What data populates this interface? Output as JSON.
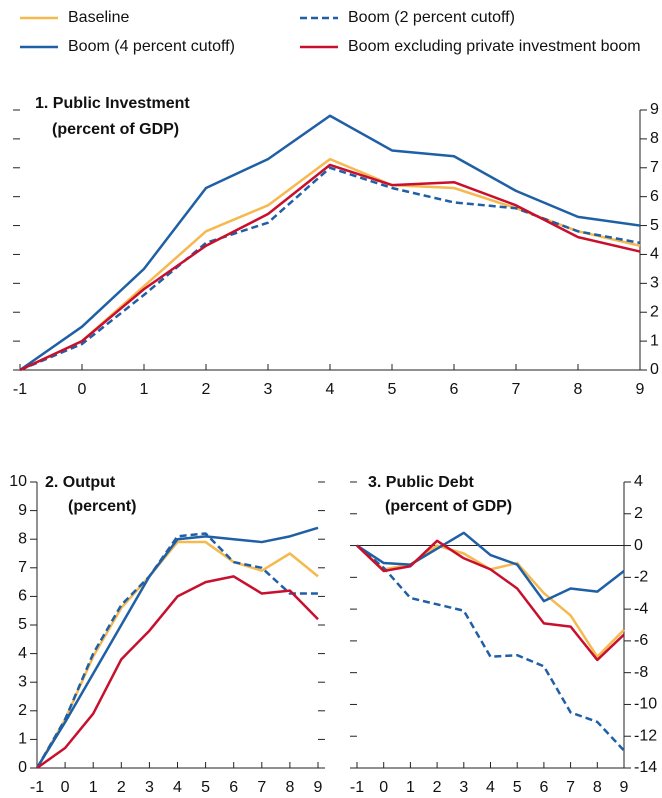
{
  "chart_data": [
    {
      "type": "line",
      "title": "1. Public Investment",
      "subtitle": "(percent of GDP)",
      "x": [
        -1,
        0,
        1,
        2,
        3,
        4,
        5,
        6,
        7,
        8,
        9
      ],
      "xlim": [
        -1,
        9
      ],
      "xticks": [
        -1,
        0,
        1,
        2,
        3,
        4,
        5,
        6,
        7,
        8,
        9
      ],
      "ylim": [
        0,
        9
      ],
      "yticks": [
        0,
        1,
        2,
        3,
        4,
        5,
        6,
        7,
        8,
        9
      ],
      "y_axis_side": "right",
      "series": [
        {
          "name": "Baseline",
          "color": "#f5b94f",
          "dashed": false,
          "values": [
            0,
            1.0,
            2.9,
            4.8,
            5.7,
            7.3,
            6.4,
            6.3,
            5.6,
            4.8,
            4.3
          ]
        },
        {
          "name": "Boom (2 percent cutoff)",
          "color": "#1f5fa6",
          "dashed": true,
          "values": [
            0,
            0.9,
            2.6,
            4.4,
            5.1,
            7.0,
            6.3,
            5.8,
            5.6,
            4.8,
            4.4
          ]
        },
        {
          "name": "Boom (4 percent cutoff)",
          "color": "#1f5fa6",
          "dashed": false,
          "values": [
            0,
            1.5,
            3.5,
            6.3,
            7.3,
            8.8,
            7.6,
            7.4,
            6.2,
            5.3,
            5.0
          ]
        },
        {
          "name": "Boom excluding private investment boom",
          "color": "#c8102e",
          "dashed": false,
          "values": [
            0,
            1.0,
            2.8,
            4.3,
            5.4,
            7.1,
            6.4,
            6.5,
            5.7,
            4.6,
            4.1
          ]
        }
      ]
    },
    {
      "type": "line",
      "title": "2. Output",
      "subtitle": "(percent)",
      "x": [
        -1,
        0,
        1,
        2,
        3,
        4,
        5,
        6,
        7,
        8,
        9
      ],
      "xlim": [
        -1,
        9
      ],
      "xticks": [
        -1,
        0,
        1,
        2,
        3,
        4,
        5,
        6,
        7,
        8,
        9
      ],
      "ylim": [
        0,
        10
      ],
      "yticks": [
        0,
        1,
        2,
        3,
        4,
        5,
        6,
        7,
        8,
        9,
        10
      ],
      "y_axis_side": "left",
      "series": [
        {
          "color": "#f5b94f",
          "dashed": false,
          "values": [
            0,
            1.7,
            3.9,
            5.6,
            6.7,
            7.9,
            7.9,
            7.2,
            6.9,
            7.5,
            6.7
          ]
        },
        {
          "color": "#1f5fa6",
          "dashed": true,
          "values": [
            0,
            1.7,
            4.0,
            5.7,
            6.7,
            8.1,
            8.2,
            7.2,
            7.0,
            6.1,
            6.1
          ]
        },
        {
          "color": "#1f5fa6",
          "dashed": false,
          "values": [
            0,
            1.6,
            3.3,
            5.0,
            6.7,
            8.0,
            8.1,
            8.0,
            7.9,
            8.1,
            8.4
          ]
        },
        {
          "color": "#c8102e",
          "dashed": false,
          "values": [
            0,
            0.7,
            1.9,
            3.8,
            4.8,
            6.0,
            6.5,
            6.7,
            6.1,
            6.2,
            5.2
          ]
        }
      ]
    },
    {
      "type": "line",
      "title": "3. Public Debt",
      "subtitle": "(percent of GDP)",
      "x": [
        -1,
        0,
        1,
        2,
        3,
        4,
        5,
        6,
        7,
        8,
        9
      ],
      "xlim": [
        -1,
        9
      ],
      "xticks": [
        -1,
        0,
        1,
        2,
        3,
        4,
        5,
        6,
        7,
        8,
        9
      ],
      "ylim": [
        -14,
        4
      ],
      "yticks": [
        -14,
        -12,
        -10,
        -8,
        -6,
        -4,
        -2,
        0,
        2,
        4
      ],
      "y_axis_side": "right",
      "zero_line": true,
      "series": [
        {
          "color": "#f5b94f",
          "dashed": false,
          "values": [
            0,
            -1.5,
            -1.2,
            0,
            -0.5,
            -1.5,
            -1.1,
            -3.0,
            -4.4,
            -7.0,
            -5.3
          ]
        },
        {
          "color": "#1f5fa6",
          "dashed": true,
          "values": [
            0,
            -1.4,
            -3.3,
            -3.7,
            -4.1,
            -7.0,
            -6.9,
            -7.6,
            -10.5,
            -11.1,
            -12.9
          ]
        },
        {
          "color": "#1f5fa6",
          "dashed": false,
          "values": [
            0,
            -1.1,
            -1.2,
            -0.2,
            0.8,
            -0.6,
            -1.2,
            -3.5,
            -2.7,
            -2.9,
            -1.6
          ]
        },
        {
          "color": "#c8102e",
          "dashed": false,
          "values": [
            0,
            -1.6,
            -1.3,
            0.3,
            -0.8,
            -1.5,
            -2.7,
            -4.9,
            -5.1,
            -7.2,
            -5.6
          ]
        }
      ]
    }
  ]
}
